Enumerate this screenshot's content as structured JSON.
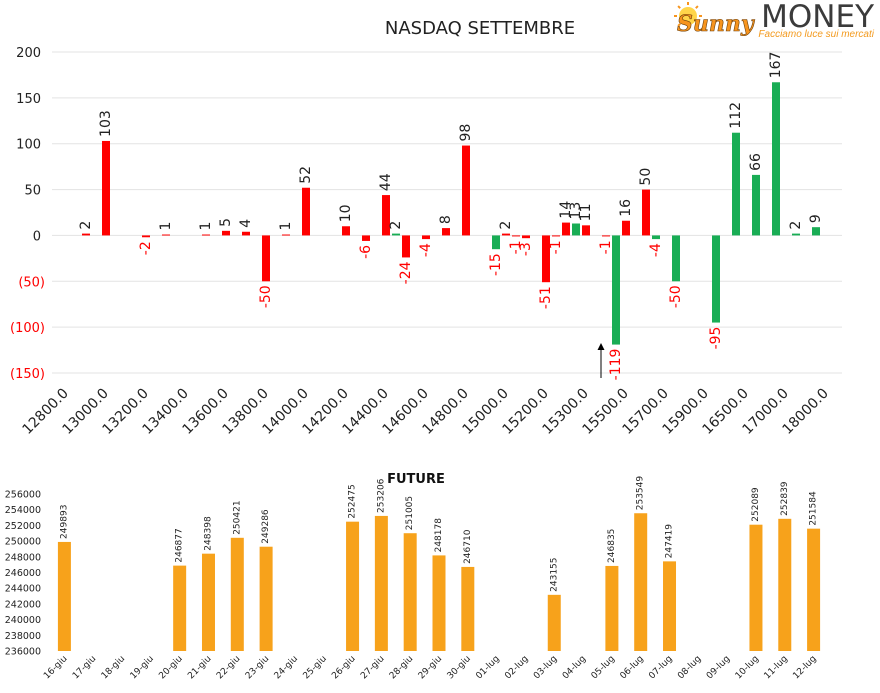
{
  "logo": {
    "brand_script": "Sunny",
    "brand_word": "MONEY",
    "tagline": "Facciamo luce sui mercati",
    "icon": "sun-icon",
    "brand_orange": "#f7941d",
    "brand_gray": "#3b3b3b",
    "tagline_color": "#f39a1e"
  },
  "colors": {
    "red": "#ff0000",
    "green": "#19ad55",
    "orange": "#f7a21b",
    "text": "#222222",
    "negative_text": "#ff0000",
    "grid": "#e3e3e3"
  },
  "chart_data": [
    {
      "type": "bar",
      "title": "NASDAQ SETTEMBRE",
      "categories": [
        "12800.0",
        "",
        "",
        "",
        "13000.0",
        "",
        "",
        "",
        "13200.0",
        "",
        "",
        "",
        "13400.0",
        "",
        "",
        "",
        "13600.0",
        "",
        "",
        "",
        "13800.0",
        "",
        "",
        "",
        "14000.0",
        "",
        "",
        "",
        "14200.0",
        "",
        "",
        "",
        "14400.0",
        "",
        "",
        "",
        "14600.0",
        "",
        "",
        "",
        "14800.0",
        "",
        "",
        "",
        "15000.0",
        "",
        "",
        "",
        "15200.0",
        "",
        "",
        "",
        "15300.0",
        "",
        "",
        "",
        "15500.0",
        "",
        "",
        "",
        "15700.0",
        "",
        "",
        "",
        "15900.0",
        "",
        "",
        "",
        "16500.0",
        "",
        "",
        "",
        "17000.0",
        "",
        "",
        "",
        "18000.0",
        ""
      ],
      "values": [
        null,
        null,
        2,
        null,
        103,
        null,
        null,
        null,
        -2,
        null,
        1,
        null,
        null,
        null,
        1,
        null,
        5,
        null,
        4,
        null,
        -50,
        null,
        1,
        null,
        52,
        null,
        null,
        null,
        10,
        null,
        -6,
        null,
        44,
        2,
        -24,
        null,
        -4,
        null,
        8,
        null,
        98,
        null,
        null,
        -15,
        2,
        -1,
        -3,
        null,
        -51,
        -1,
        14,
        13,
        11,
        null,
        -1,
        -119,
        16,
        null,
        50,
        -4,
        null,
        -50,
        null,
        null,
        null,
        -95,
        null,
        112,
        null,
        66,
        null,
        167,
        null,
        2,
        null,
        9,
        null,
        null
      ],
      "bar_colors": [
        null,
        null,
        "red",
        null,
        "red",
        null,
        null,
        null,
        "red",
        null,
        "red",
        null,
        null,
        null,
        "red",
        null,
        "red",
        null,
        "red",
        null,
        "red",
        null,
        "red",
        null,
        "red",
        null,
        null,
        null,
        "red",
        null,
        "red",
        null,
        "red",
        "green",
        "red",
        null,
        "red",
        null,
        "red",
        null,
        "red",
        null,
        null,
        "green",
        "red",
        "red",
        "red",
        null,
        "red",
        "red",
        "red",
        "green",
        "red",
        null,
        "red",
        "green",
        "red",
        null,
        "red",
        "green",
        null,
        "green",
        null,
        null,
        null,
        "green",
        null,
        "green",
        null,
        "green",
        null,
        "green",
        null,
        "green",
        null,
        "green",
        null,
        null
      ],
      "ylim": [
        -150,
        200
      ],
      "y_ticks": [
        200,
        150,
        100,
        50,
        0,
        -50,
        -100,
        -150
      ],
      "y_tick_labels": [
        "200",
        "150",
        "100",
        "50",
        "0",
        "(50)",
        "(100)",
        "(150)"
      ],
      "grid": true
    },
    {
      "type": "bar",
      "title": "FUTURE",
      "categories": [
        "16-giu",
        "17-giu",
        "18-giu",
        "19-giu",
        "20-giu",
        "21-giu",
        "22-giu",
        "23-giu",
        "24-giu",
        "25-giu",
        "26-giu",
        "27-giu",
        "28-giu",
        "29-giu",
        "30-giu",
        "01-lug",
        "02-lug",
        "03-lug",
        "04-lug",
        "05-lug",
        "06-lug",
        "07-lug",
        "08-lug",
        "09-lug",
        "10-lug",
        "11-lug",
        "12-lug"
      ],
      "values": [
        249893,
        null,
        null,
        null,
        246877,
        248398,
        250421,
        249286,
        null,
        null,
        252475,
        253206,
        251005,
        248178,
        246710,
        null,
        null,
        243155,
        null,
        246835,
        253549,
        247419,
        null,
        null,
        252089,
        252839,
        251584
      ],
      "ylim": [
        236000,
        256000
      ],
      "y_ticks": [
        256000,
        254000,
        252000,
        250000,
        248000,
        246000,
        244000,
        242000,
        240000,
        238000,
        236000
      ],
      "grid": false
    }
  ]
}
